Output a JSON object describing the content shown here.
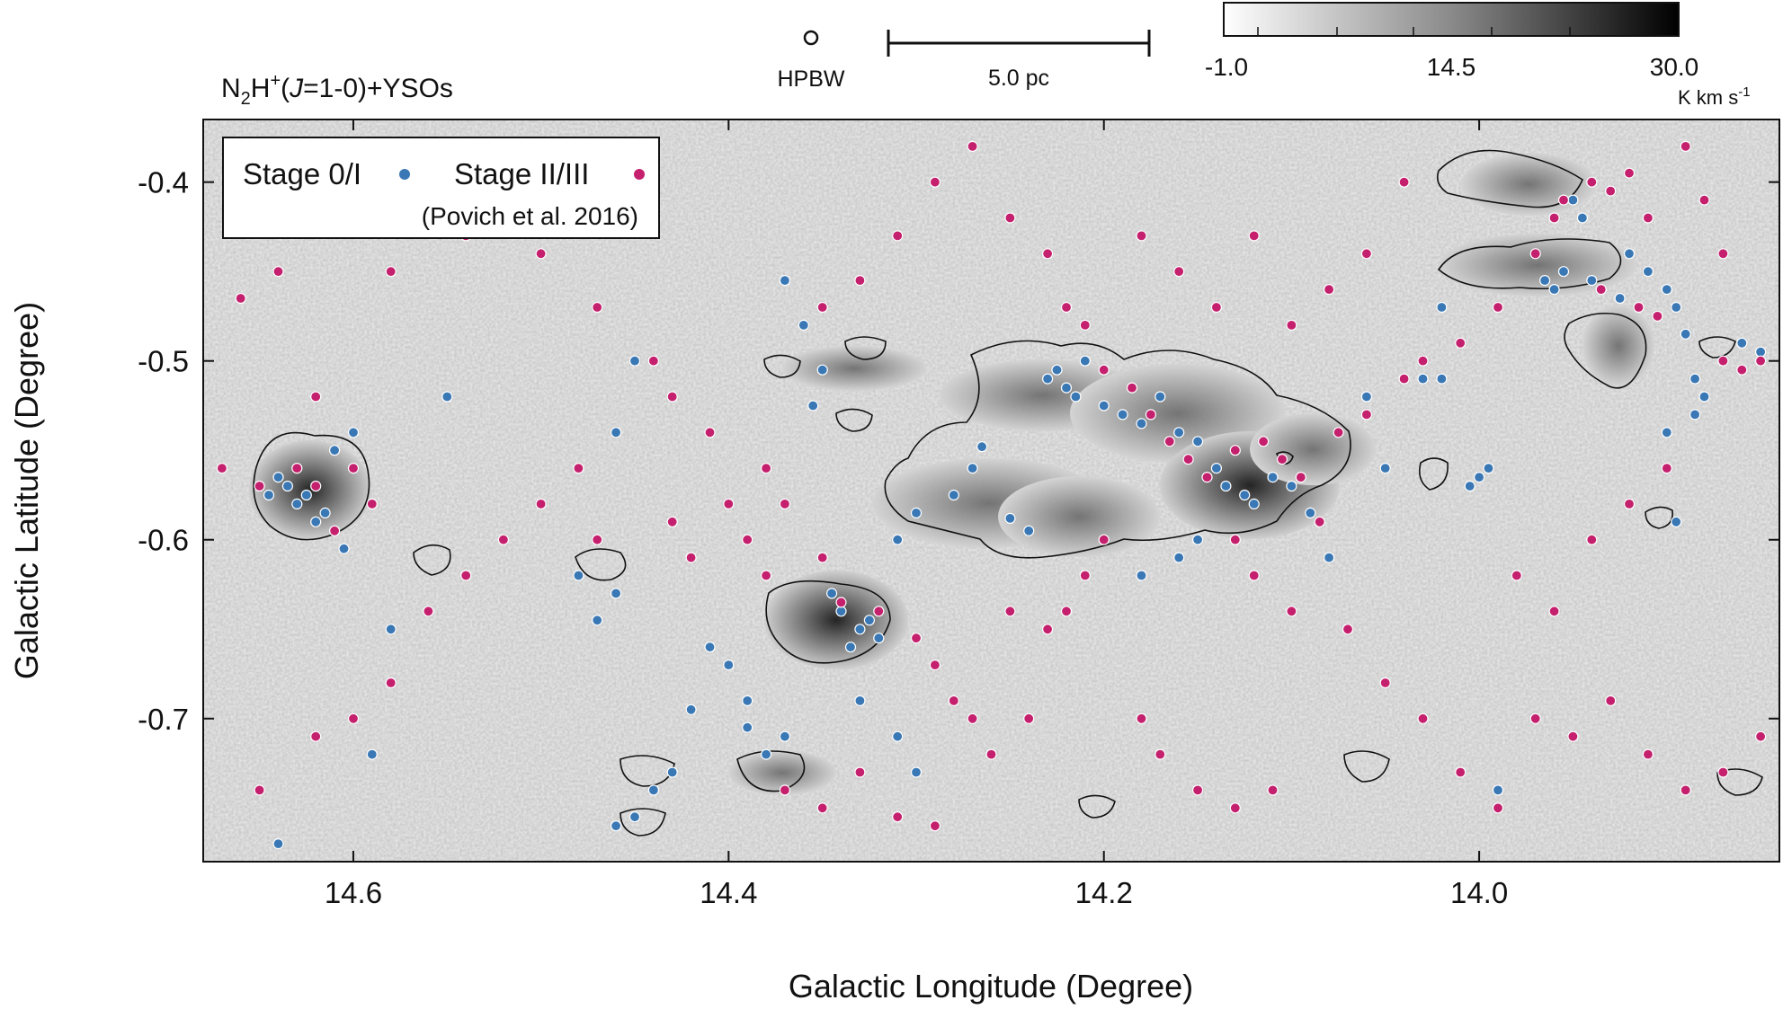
{
  "title": {
    "molecule_base": "N",
    "molecule_sub": "2",
    "molecule_h": "H",
    "molecule_sup": "+",
    "transition_open": "(",
    "transition_j": "J",
    "transition_rest": "=1-0)+YSOs"
  },
  "beam": {
    "label": "HPBW"
  },
  "scalebar": {
    "label": "5.0 pc"
  },
  "colorbar": {
    "ticks": [
      "-1.0",
      "14.5",
      "30.0"
    ],
    "unit": "K km s",
    "unit_sup": "-1",
    "range": [
      -1.0,
      30.0
    ],
    "colors": {
      "low": "#ffffff",
      "high": "#000000"
    }
  },
  "legend": {
    "stage_01_label": "Stage 0/I",
    "stage_23_label": "Stage II/III",
    "reference": "(Povich et al. 2016)"
  },
  "chart_data": {
    "type": "scatter",
    "background": "N2H+ integrated intensity map (grayscale)",
    "xlabel": "Galactic Longitude (Degree)",
    "ylabel": "Galactic Latitude (Degree)",
    "xlim": [
      14.68,
      13.84
    ],
    "ylim": [
      -0.78,
      -0.365
    ],
    "x_ticks": [
      "14.6",
      "14.4",
      "14.2",
      "14.0"
    ],
    "x_tick_values": [
      14.6,
      14.4,
      14.2,
      14.0
    ],
    "y_ticks": [
      "-0.4",
      "-0.5",
      "-0.6",
      "-0.7"
    ],
    "y_tick_values": [
      -0.4,
      -0.5,
      -0.6,
      -0.7
    ],
    "series": [
      {
        "name": "Stage 0/I",
        "color": "#3a78b5",
        "points": [
          [
            14.64,
            -0.565
          ],
          [
            14.63,
            -0.58
          ],
          [
            14.62,
            -0.59
          ],
          [
            14.635,
            -0.57
          ],
          [
            14.61,
            -0.55
          ],
          [
            14.6,
            -0.54
          ],
          [
            14.625,
            -0.575
          ],
          [
            14.615,
            -0.585
          ],
          [
            14.645,
            -0.575
          ],
          [
            14.605,
            -0.605
          ],
          [
            14.37,
            -0.455
          ],
          [
            14.36,
            -0.48
          ],
          [
            14.355,
            -0.525
          ],
          [
            14.35,
            -0.505
          ],
          [
            14.34,
            -0.64
          ],
          [
            14.33,
            -0.65
          ],
          [
            14.32,
            -0.655
          ],
          [
            14.335,
            -0.66
          ],
          [
            14.325,
            -0.645
          ],
          [
            14.345,
            -0.63
          ],
          [
            14.31,
            -0.6
          ],
          [
            14.3,
            -0.585
          ],
          [
            14.28,
            -0.575
          ],
          [
            14.27,
            -0.56
          ],
          [
            14.265,
            -0.548
          ],
          [
            14.25,
            -0.588
          ],
          [
            14.24,
            -0.595
          ],
          [
            14.23,
            -0.51
          ],
          [
            14.225,
            -0.505
          ],
          [
            14.22,
            -0.515
          ],
          [
            14.215,
            -0.52
          ],
          [
            14.21,
            -0.5
          ],
          [
            14.2,
            -0.525
          ],
          [
            14.19,
            -0.53
          ],
          [
            14.18,
            -0.535
          ],
          [
            14.17,
            -0.52
          ],
          [
            14.16,
            -0.54
          ],
          [
            14.15,
            -0.545
          ],
          [
            14.14,
            -0.56
          ],
          [
            14.135,
            -0.57
          ],
          [
            14.125,
            -0.575
          ],
          [
            14.12,
            -0.58
          ],
          [
            14.11,
            -0.565
          ],
          [
            14.1,
            -0.57
          ],
          [
            14.09,
            -0.585
          ],
          [
            14.16,
            -0.61
          ],
          [
            14.18,
            -0.62
          ],
          [
            14.15,
            -0.6
          ],
          [
            14.0,
            -0.565
          ],
          [
            14.005,
            -0.57
          ],
          [
            13.995,
            -0.56
          ],
          [
            13.95,
            -0.41
          ],
          [
            13.945,
            -0.42
          ],
          [
            13.92,
            -0.44
          ],
          [
            13.91,
            -0.45
          ],
          [
            13.9,
            -0.46
          ],
          [
            13.895,
            -0.47
          ],
          [
            13.89,
            -0.485
          ],
          [
            13.885,
            -0.51
          ],
          [
            13.88,
            -0.52
          ],
          [
            13.885,
            -0.53
          ],
          [
            13.9,
            -0.54
          ],
          [
            13.86,
            -0.49
          ],
          [
            13.85,
            -0.495
          ],
          [
            13.965,
            -0.455
          ],
          [
            13.96,
            -0.46
          ],
          [
            13.955,
            -0.45
          ],
          [
            13.94,
            -0.455
          ],
          [
            13.925,
            -0.465
          ],
          [
            14.02,
            -0.47
          ],
          [
            14.03,
            -0.51
          ],
          [
            13.895,
            -0.59
          ],
          [
            14.38,
            -0.72
          ],
          [
            14.37,
            -0.71
          ],
          [
            14.39,
            -0.705
          ],
          [
            14.42,
            -0.695
          ],
          [
            14.43,
            -0.73
          ],
          [
            14.44,
            -0.74
          ],
          [
            14.45,
            -0.755
          ],
          [
            14.46,
            -0.76
          ],
          [
            14.47,
            -0.645
          ],
          [
            14.48,
            -0.62
          ],
          [
            14.46,
            -0.63
          ],
          [
            14.55,
            -0.52
          ],
          [
            14.58,
            -0.65
          ],
          [
            14.59,
            -0.72
          ],
          [
            14.64,
            -0.77
          ],
          [
            14.46,
            -0.54
          ],
          [
            14.45,
            -0.5
          ],
          [
            14.41,
            -0.66
          ],
          [
            14.4,
            -0.67
          ],
          [
            14.39,
            -0.69
          ],
          [
            14.33,
            -0.69
          ],
          [
            14.31,
            -0.71
          ],
          [
            14.3,
            -0.73
          ],
          [
            14.06,
            -0.52
          ],
          [
            14.05,
            -0.56
          ],
          [
            14.08,
            -0.61
          ],
          [
            14.02,
            -0.51
          ],
          [
            13.99,
            -0.74
          ]
        ]
      },
      {
        "name": "Stage II/III",
        "color": "#c4206e",
        "points": [
          [
            14.65,
            -0.57
          ],
          [
            14.63,
            -0.56
          ],
          [
            14.62,
            -0.57
          ],
          [
            14.6,
            -0.56
          ],
          [
            14.59,
            -0.58
          ],
          [
            14.61,
            -0.595
          ],
          [
            14.66,
            -0.465
          ],
          [
            14.67,
            -0.56
          ],
          [
            14.64,
            -0.45
          ],
          [
            14.62,
            -0.52
          ],
          [
            14.58,
            -0.45
          ],
          [
            14.56,
            -0.41
          ],
          [
            14.54,
            -0.43
          ],
          [
            14.52,
            -0.42
          ],
          [
            14.5,
            -0.44
          ],
          [
            14.47,
            -0.47
          ],
          [
            14.44,
            -0.5
          ],
          [
            14.43,
            -0.52
          ],
          [
            14.41,
            -0.54
          ],
          [
            14.38,
            -0.56
          ],
          [
            14.37,
            -0.58
          ],
          [
            14.35,
            -0.61
          ],
          [
            14.34,
            -0.635
          ],
          [
            14.32,
            -0.64
          ],
          [
            14.3,
            -0.655
          ],
          [
            14.29,
            -0.67
          ],
          [
            14.28,
            -0.69
          ],
          [
            14.27,
            -0.7
          ],
          [
            14.26,
            -0.72
          ],
          [
            14.24,
            -0.7
          ],
          [
            14.35,
            -0.47
          ],
          [
            14.33,
            -0.455
          ],
          [
            14.31,
            -0.43
          ],
          [
            14.29,
            -0.4
          ],
          [
            14.27,
            -0.38
          ],
          [
            14.25,
            -0.42
          ],
          [
            14.23,
            -0.44
          ],
          [
            14.22,
            -0.47
          ],
          [
            14.21,
            -0.48
          ],
          [
            14.2,
            -0.505
          ],
          [
            14.185,
            -0.515
          ],
          [
            14.175,
            -0.53
          ],
          [
            14.165,
            -0.545
          ],
          [
            14.155,
            -0.555
          ],
          [
            14.145,
            -0.565
          ],
          [
            14.13,
            -0.55
          ],
          [
            14.115,
            -0.545
          ],
          [
            14.105,
            -0.555
          ],
          [
            14.095,
            -0.565
          ],
          [
            14.085,
            -0.59
          ],
          [
            14.075,
            -0.54
          ],
          [
            14.06,
            -0.53
          ],
          [
            14.04,
            -0.51
          ],
          [
            14.03,
            -0.5
          ],
          [
            14.01,
            -0.49
          ],
          [
            13.99,
            -0.47
          ],
          [
            13.97,
            -0.44
          ],
          [
            13.96,
            -0.42
          ],
          [
            13.955,
            -0.41
          ],
          [
            13.94,
            -0.4
          ],
          [
            13.93,
            -0.405
          ],
          [
            13.92,
            -0.395
          ],
          [
            13.935,
            -0.46
          ],
          [
            13.915,
            -0.47
          ],
          [
            13.905,
            -0.475
          ],
          [
            13.87,
            -0.5
          ],
          [
            13.86,
            -0.505
          ],
          [
            13.85,
            -0.5
          ],
          [
            13.87,
            -0.44
          ],
          [
            13.88,
            -0.41
          ],
          [
            13.89,
            -0.38
          ],
          [
            13.91,
            -0.42
          ],
          [
            14.04,
            -0.4
          ],
          [
            14.06,
            -0.44
          ],
          [
            14.08,
            -0.46
          ],
          [
            14.1,
            -0.48
          ],
          [
            14.12,
            -0.43
          ],
          [
            14.14,
            -0.47
          ],
          [
            14.16,
            -0.45
          ],
          [
            14.18,
            -0.43
          ],
          [
            14.2,
            -0.6
          ],
          [
            14.21,
            -0.62
          ],
          [
            14.22,
            -0.64
          ],
          [
            14.23,
            -0.65
          ],
          [
            14.25,
            -0.64
          ],
          [
            14.13,
            -0.6
          ],
          [
            14.12,
            -0.62
          ],
          [
            14.1,
            -0.64
          ],
          [
            14.07,
            -0.65
          ],
          [
            14.05,
            -0.68
          ],
          [
            14.03,
            -0.7
          ],
          [
            14.01,
            -0.73
          ],
          [
            13.99,
            -0.75
          ],
          [
            13.97,
            -0.7
          ],
          [
            13.95,
            -0.71
          ],
          [
            13.93,
            -0.69
          ],
          [
            13.91,
            -0.72
          ],
          [
            13.89,
            -0.74
          ],
          [
            13.87,
            -0.73
          ],
          [
            13.85,
            -0.71
          ],
          [
            14.47,
            -0.6
          ],
          [
            14.48,
            -0.56
          ],
          [
            14.5,
            -0.58
          ],
          [
            14.52,
            -0.6
          ],
          [
            14.54,
            -0.62
          ],
          [
            14.56,
            -0.64
          ],
          [
            14.58,
            -0.68
          ],
          [
            14.6,
            -0.7
          ],
          [
            14.62,
            -0.71
          ],
          [
            14.65,
            -0.74
          ],
          [
            14.43,
            -0.59
          ],
          [
            14.42,
            -0.61
          ],
          [
            14.4,
            -0.58
          ],
          [
            14.39,
            -0.6
          ],
          [
            14.38,
            -0.62
          ],
          [
            14.37,
            -0.74
          ],
          [
            14.35,
            -0.75
          ],
          [
            14.33,
            -0.73
          ],
          [
            14.31,
            -0.755
          ],
          [
            14.29,
            -0.76
          ],
          [
            14.18,
            -0.7
          ],
          [
            14.17,
            -0.72
          ],
          [
            14.15,
            -0.74
          ],
          [
            14.13,
            -0.75
          ],
          [
            14.11,
            -0.74
          ],
          [
            13.98,
            -0.62
          ],
          [
            13.96,
            -0.64
          ],
          [
            13.94,
            -0.6
          ],
          [
            13.92,
            -0.58
          ],
          [
            13.9,
            -0.56
          ]
        ]
      }
    ]
  }
}
